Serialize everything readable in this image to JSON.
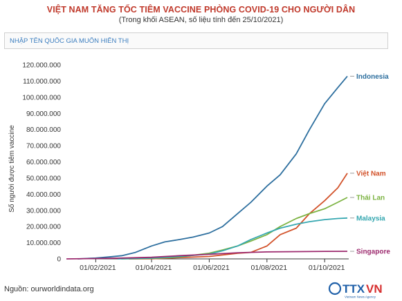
{
  "header": {
    "title": "VIỆT NAM TĂNG TỐC TIÊM VACCINE PHÒNG COVID-19 CHO NGƯỜI DÂN",
    "subtitle": "(Trong khối ASEAN, số liệu tính đến 25/10/2021)"
  },
  "search": {
    "placeholder": "NHẬP TÊN QUỐC GIA MUỐN HIỂN THỊ"
  },
  "footer": {
    "source": "Nguồn: ourworldindata.org",
    "logo_text": "TTXVN",
    "logo_subtext": "Vietnam News Agency"
  },
  "colors": {
    "title": "#c0392b",
    "indonesia": "#2c6e9e",
    "vietnam": "#d2522a",
    "thailand": "#7cb342",
    "malaysia": "#35a7b0",
    "singapore": "#9c2a6e",
    "logo_blue": "#1e5fa8",
    "logo_red": "#d62f2f"
  },
  "chart_data": {
    "type": "line",
    "title": "VIỆT NAM TĂNG TỐC TIÊM VACCINE PHÒNG COVID-19 CHO NGƯỜI DÂN",
    "subtitle": "(Trong khối ASEAN, số liệu tính đến 25/10/2021)",
    "xlabel": "",
    "ylabel": "Số người được tiêm vaccine",
    "x_range": [
      "2021-01-01",
      "2021-10-25"
    ],
    "ylim": [
      0,
      120000000
    ],
    "y_ticks": [
      "0",
      "10.000.000",
      "20.000.000",
      "30.000.000",
      "40.000.000",
      "50.000.000",
      "60.000.000",
      "70.000.000",
      "80.000.000",
      "90.000.000",
      "100.000.000",
      "110.000.000",
      "120.000.000"
    ],
    "x_ticks": [
      {
        "date": "2021-02-01",
        "label": "01/02/2021"
      },
      {
        "date": "2021-04-01",
        "label": "01/04/2021"
      },
      {
        "date": "2021-06-01",
        "label": "01/06/2021"
      },
      {
        "date": "2021-08-01",
        "label": "01/08/2021"
      },
      {
        "date": "2021-10-01",
        "label": "01/10/2021"
      }
    ],
    "grid": false,
    "legend": "inline labels at line ends (right)",
    "series": [
      {
        "name": "Indonesia",
        "color_key": "indonesia",
        "points": [
          [
            "2021-01-13",
            0
          ],
          [
            "2021-02-01",
            500000
          ],
          [
            "2021-02-15",
            1200000
          ],
          [
            "2021-03-01",
            2000000
          ],
          [
            "2021-03-15",
            4000000
          ],
          [
            "2021-04-01",
            8000000
          ],
          [
            "2021-04-15",
            10500000
          ],
          [
            "2021-05-01",
            12000000
          ],
          [
            "2021-05-15",
            13500000
          ],
          [
            "2021-06-01",
            16000000
          ],
          [
            "2021-06-15",
            20000000
          ],
          [
            "2021-07-01",
            28000000
          ],
          [
            "2021-07-15",
            35000000
          ],
          [
            "2021-08-01",
            45000000
          ],
          [
            "2021-08-15",
            52000000
          ],
          [
            "2021-09-01",
            65000000
          ],
          [
            "2021-09-15",
            80000000
          ],
          [
            "2021-10-01",
            96000000
          ],
          [
            "2021-10-15",
            106000000
          ],
          [
            "2021-10-25",
            113000000
          ]
        ]
      },
      {
        "name": "Việt Nam",
        "color_key": "vietnam",
        "points": [
          [
            "2021-03-08",
            0
          ],
          [
            "2021-04-01",
            100000
          ],
          [
            "2021-05-01",
            800000
          ],
          [
            "2021-06-01",
            1500000
          ],
          [
            "2021-07-01",
            3500000
          ],
          [
            "2021-07-15",
            4000000
          ],
          [
            "2021-08-01",
            8000000
          ],
          [
            "2021-08-15",
            15000000
          ],
          [
            "2021-09-01",
            19000000
          ],
          [
            "2021-09-15",
            28000000
          ],
          [
            "2021-10-01",
            36000000
          ],
          [
            "2021-10-15",
            44000000
          ],
          [
            "2021-10-25",
            53000000
          ]
        ]
      },
      {
        "name": "Thái Lan",
        "color_key": "thailand",
        "points": [
          [
            "2021-02-28",
            0
          ],
          [
            "2021-04-01",
            300000
          ],
          [
            "2021-05-01",
            1200000
          ],
          [
            "2021-06-01",
            3500000
          ],
          [
            "2021-06-15",
            5500000
          ],
          [
            "2021-07-01",
            8000000
          ],
          [
            "2021-07-15",
            11000000
          ],
          [
            "2021-08-01",
            15000000
          ],
          [
            "2021-08-15",
            20000000
          ],
          [
            "2021-09-01",
            25000000
          ],
          [
            "2021-09-15",
            28000000
          ],
          [
            "2021-10-01",
            31000000
          ],
          [
            "2021-10-15",
            35000000
          ],
          [
            "2021-10-25",
            38000000
          ]
        ]
      },
      {
        "name": "Malaysia",
        "color_key": "malaysia",
        "points": [
          [
            "2021-02-24",
            0
          ],
          [
            "2021-04-01",
            500000
          ],
          [
            "2021-05-01",
            1500000
          ],
          [
            "2021-06-01",
            3000000
          ],
          [
            "2021-06-15",
            5000000
          ],
          [
            "2021-07-01",
            8000000
          ],
          [
            "2021-07-15",
            12000000
          ],
          [
            "2021-08-01",
            16000000
          ],
          [
            "2021-08-15",
            19000000
          ],
          [
            "2021-09-01",
            21500000
          ],
          [
            "2021-09-15",
            23000000
          ],
          [
            "2021-10-01",
            24300000
          ],
          [
            "2021-10-15",
            25000000
          ],
          [
            "2021-10-25",
            25300000
          ]
        ]
      },
      {
        "name": "Singapore",
        "color_key": "singapore",
        "points": [
          [
            "2021-01-01",
            0
          ],
          [
            "2021-02-01",
            200000
          ],
          [
            "2021-03-01",
            500000
          ],
          [
            "2021-04-01",
            1000000
          ],
          [
            "2021-05-01",
            2000000
          ],
          [
            "2021-06-01",
            2800000
          ],
          [
            "2021-07-01",
            3800000
          ],
          [
            "2021-08-01",
            4300000
          ],
          [
            "2021-09-01",
            4500000
          ],
          [
            "2021-10-01",
            4650000
          ],
          [
            "2021-10-25",
            4700000
          ]
        ]
      }
    ]
  }
}
